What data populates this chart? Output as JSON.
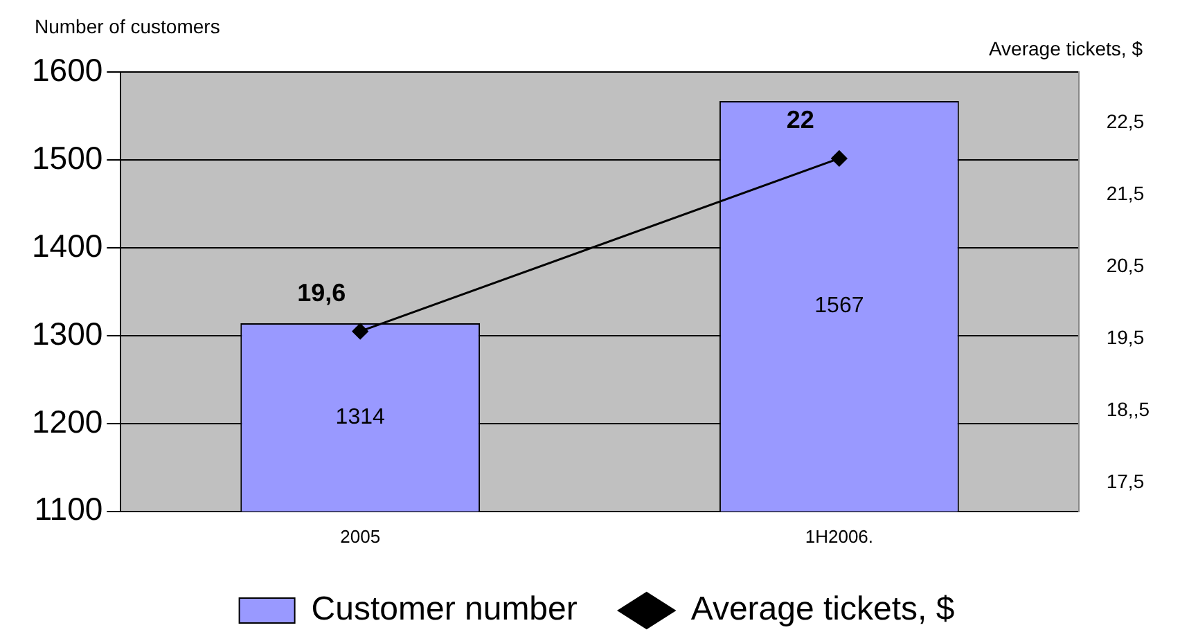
{
  "chart_data": {
    "type": "bar",
    "ylabel": "Number of customers",
    "y2label": "Average tickets, $",
    "categories": [
      "2005",
      "1H2006."
    ],
    "series": [
      {
        "name": "Customer number",
        "color": "#9999ff",
        "values": [
          1314,
          1567
        ],
        "value_labels": [
          "1314",
          "1567"
        ]
      },
      {
        "name": "Average tickets, $",
        "type": "line",
        "axis": "y2",
        "color": "#000000",
        "marker": "diamond",
        "values": [
          19.6,
          22
        ],
        "value_labels": [
          "19,6",
          "22"
        ]
      }
    ],
    "ylim": [
      1100,
      1600
    ],
    "yticks": [
      1100,
      1200,
      1300,
      1400,
      1500,
      1600
    ],
    "y2lim": [
      17.1,
      23.2
    ],
    "y2ticks": [
      {
        "value": 17.5,
        "label": "17,5"
      },
      {
        "value": 18.5,
        "label": "18,,5"
      },
      {
        "value": 19.5,
        "label": "19,5"
      },
      {
        "value": 20.5,
        "label": "20,5"
      },
      {
        "value": 21.5,
        "label": "21,5"
      },
      {
        "value": 22.5,
        "label": "22,5"
      }
    ],
    "grid": "y",
    "legend": "bottom"
  }
}
